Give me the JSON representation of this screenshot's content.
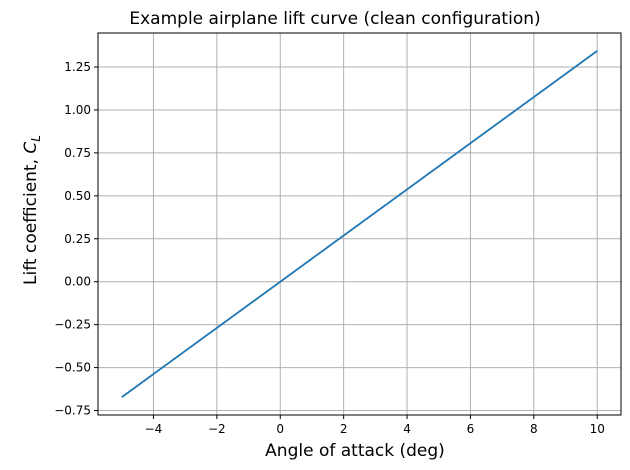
{
  "chart_data": {
    "type": "line",
    "title": "Example airplane lift curve (clean configuration)",
    "xlabel": "Angle of attack (deg)",
    "ylabel": {
      "text": "Lift coefficient, ",
      "symbol": "C",
      "subscript": "L"
    },
    "xlim": [
      -5.75,
      10.75
    ],
    "ylim": [
      -0.776,
      1.448
    ],
    "xticks": [
      -4,
      -2,
      0,
      2,
      4,
      6,
      8,
      10
    ],
    "xtick_labels": [
      "−4",
      "−2",
      "0",
      "2",
      "4",
      "6",
      "8",
      "10"
    ],
    "yticks": [
      -0.75,
      -0.5,
      -0.25,
      0.0,
      0.25,
      0.5,
      0.75,
      1.0,
      1.25
    ],
    "ytick_labels": [
      "−0.75",
      "−0.50",
      "−0.25",
      "0.00",
      "0.25",
      "0.50",
      "0.75",
      "1.00",
      "1.25"
    ],
    "grid": true,
    "series": [
      {
        "color": "#1f77b4",
        "x": [
          -5,
          10
        ],
        "y": [
          -0.672,
          1.344
        ]
      }
    ]
  }
}
